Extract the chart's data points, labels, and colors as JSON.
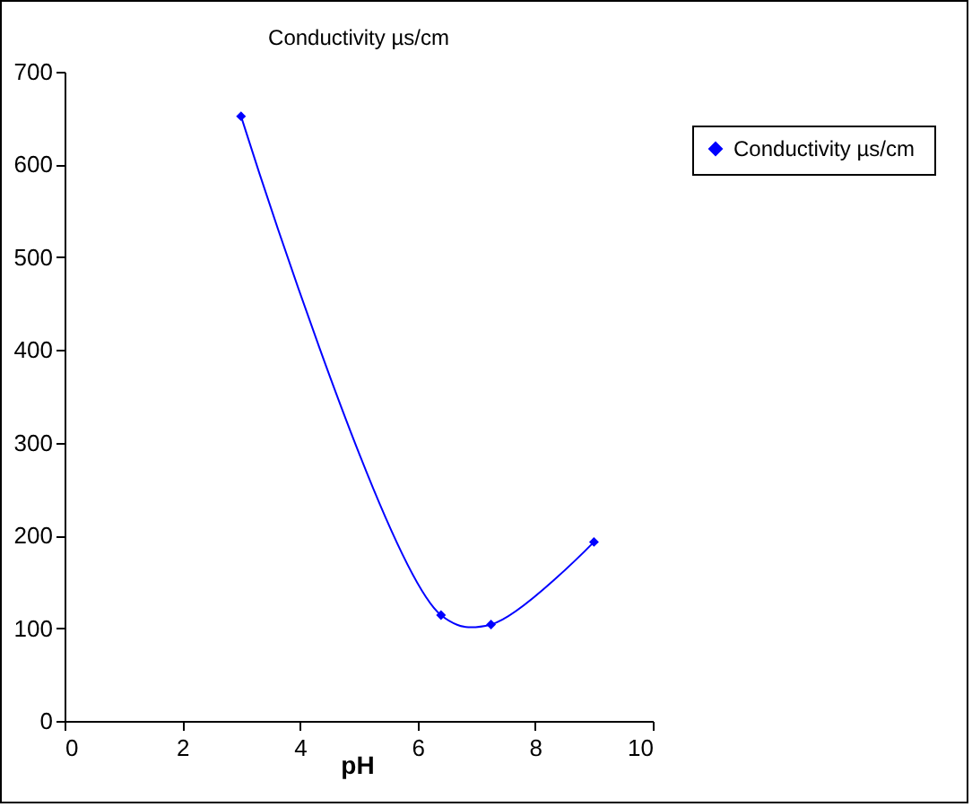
{
  "chart_data": {
    "type": "line",
    "title": "Conductivity  µs/cm",
    "xlabel": "pH",
    "x": [
      3,
      6.4,
      7.25,
      9
    ],
    "series": [
      {
        "name": "Conductivity  µs/cm",
        "color": "#0000ff",
        "values": [
          652,
          114,
          104,
          193
        ]
      }
    ],
    "xlim": [
      0,
      10
    ],
    "xticks": [
      0,
      2,
      4,
      6,
      8,
      10
    ],
    "ylim": [
      0,
      700
    ],
    "yticks": [
      0,
      100,
      200,
      300,
      400,
      500,
      600,
      700
    ],
    "marker": "diamond",
    "legend": "right",
    "grid": false
  }
}
